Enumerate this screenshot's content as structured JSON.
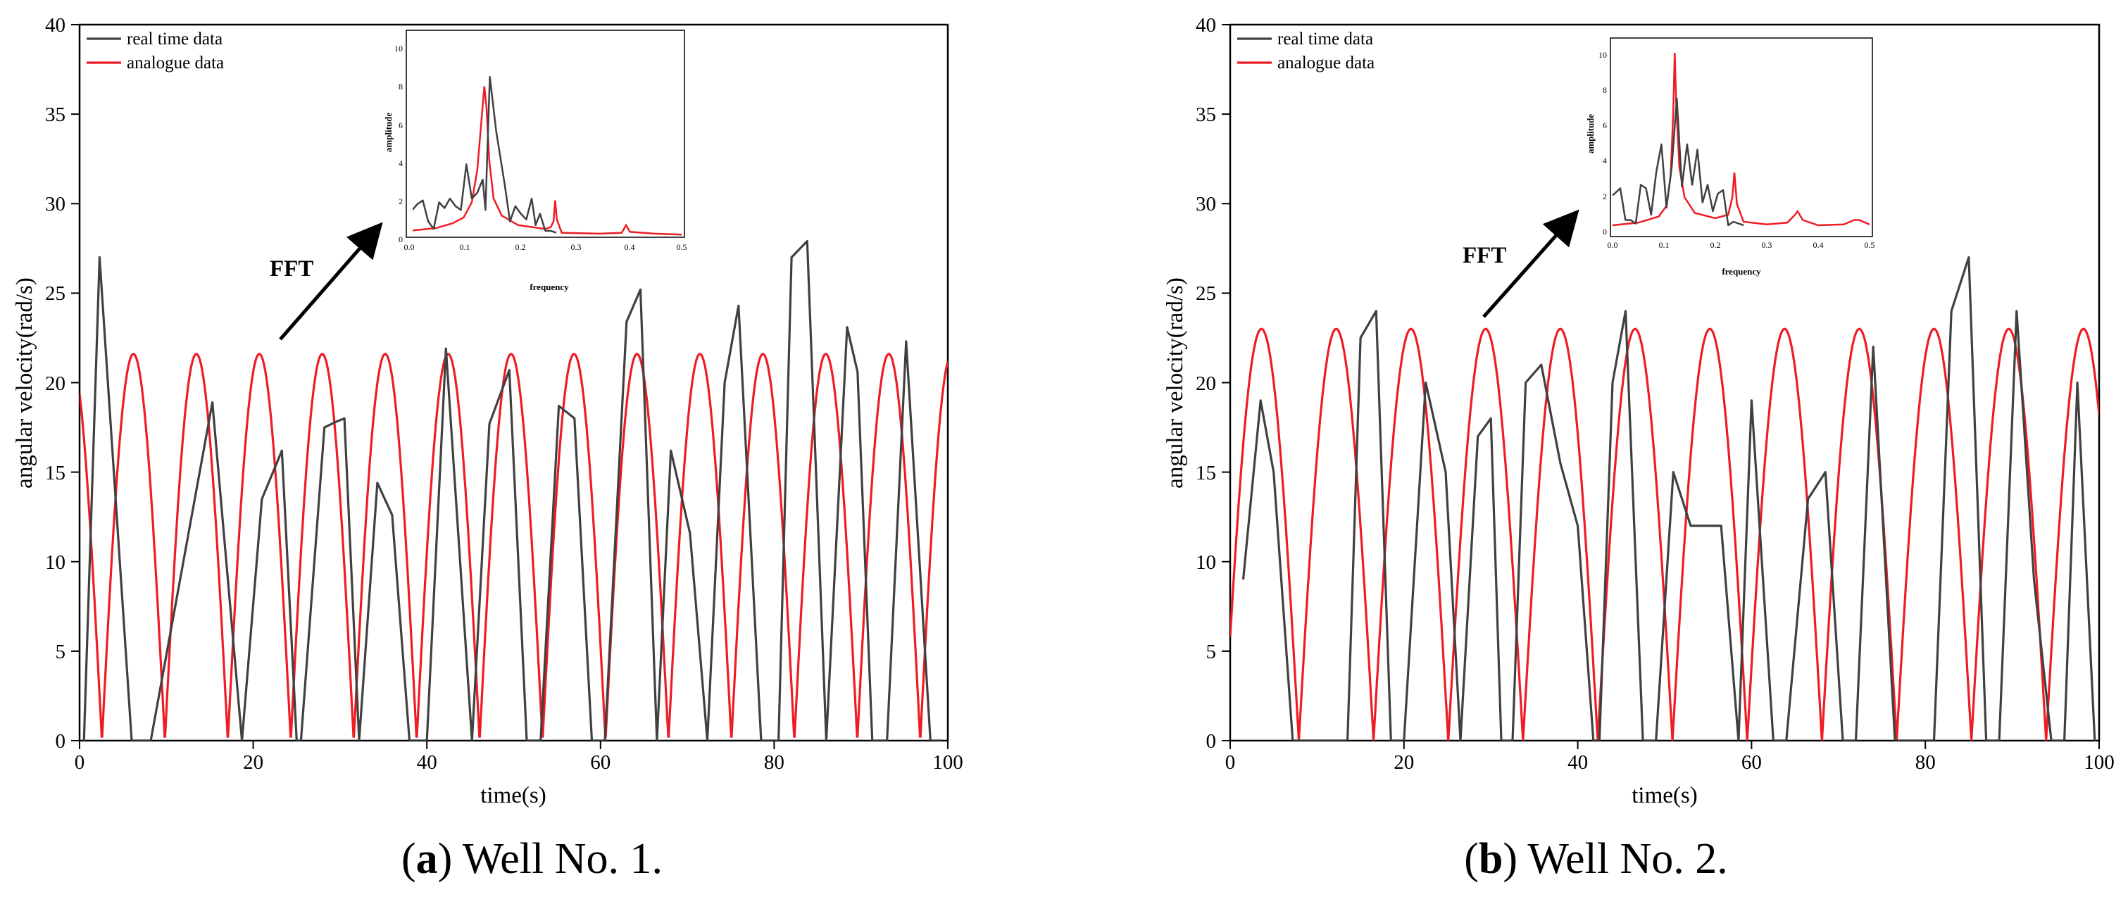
{
  "chart_data": [
    {
      "type": "line",
      "panel": "a",
      "caption_letter": "a",
      "caption_text": "Well No. 1.",
      "xlabel": "time(s)",
      "ylabel": "angular velocity(rad/s)",
      "xlim": [
        0,
        100
      ],
      "ylim": [
        0,
        40
      ],
      "xticks": [
        "0",
        "20",
        "40",
        "60",
        "80",
        "100"
      ],
      "yticks": [
        "0",
        "5",
        "10",
        "15",
        "20",
        "25",
        "30",
        "35",
        "40"
      ],
      "legend": [
        "real time data",
        "analogue data"
      ],
      "legend_position": "top-left",
      "annotation": "FFT",
      "colors": {
        "real": "#404040",
        "analogue": "#ee1c24"
      },
      "analogue_wave": {
        "amplitude": 21.6,
        "period": 7.25,
        "peak_offset": 6.2
      },
      "series": [
        {
          "name": "real time data",
          "points": [
            [
              0.5,
              0
            ],
            [
              2.3,
              27
            ],
            [
              6,
              0
            ],
            [
              6.5,
              0
            ],
            [
              8.2,
              0
            ],
            [
              15.3,
              18.9
            ],
            [
              18.7,
              0
            ],
            [
              21,
              13.5
            ],
            [
              23.3,
              16.2
            ],
            [
              25,
              0
            ],
            [
              25.5,
              0
            ],
            [
              28.2,
              17.5
            ],
            [
              29.5,
              17.8
            ],
            [
              30.5,
              18
            ],
            [
              32.2,
              0
            ],
            [
              34.3,
              14.4
            ],
            [
              36,
              12.6
            ],
            [
              38,
              0
            ],
            [
              40,
              0
            ],
            [
              42.2,
              21.9
            ],
            [
              45.2,
              0
            ],
            [
              47.2,
              17.7
            ],
            [
              49.5,
              20.7
            ],
            [
              51.5,
              0
            ],
            [
              53.1,
              0
            ],
            [
              55.2,
              18.7
            ],
            [
              57,
              18
            ],
            [
              59,
              0
            ],
            [
              60.5,
              0
            ],
            [
              63,
              23.4
            ],
            [
              64.6,
              25.2
            ],
            [
              66.5,
              0
            ],
            [
              68.1,
              16.2
            ],
            [
              70.3,
              11.6
            ],
            [
              72.3,
              0
            ],
            [
              74.3,
              20
            ],
            [
              75.9,
              24.3
            ],
            [
              78.5,
              0
            ],
            [
              80.5,
              0
            ],
            [
              82,
              27
            ],
            [
              83.8,
              27.9
            ],
            [
              86,
              0
            ],
            [
              88.4,
              23.1
            ],
            [
              89.6,
              20.6
            ],
            [
              91.3,
              0
            ],
            [
              93,
              0
            ],
            [
              95.2,
              22.3
            ],
            [
              98,
              0
            ],
            [
              99.3,
              0
            ]
          ]
        },
        {
          "name": "analogue data",
          "function": "rectified sine"
        }
      ],
      "inset": {
        "xlabel": "frequency",
        "ylabel": "amplitude",
        "xlim": [
          0,
          0.5
        ],
        "ylim": [
          0,
          10
        ],
        "xticks": [
          "0.0",
          "0.1",
          "0.2",
          "0.3",
          "0.4",
          "0.5"
        ],
        "yticks": [
          "0",
          "2",
          "4",
          "6",
          "8",
          "10"
        ],
        "series": [
          {
            "name": "real time data",
            "points": [
              [
                0,
                1.2
              ],
              [
                0.015,
                1.7
              ],
              [
                0.025,
                1.9
              ],
              [
                0.035,
                0.8
              ],
              [
                0.045,
                0.4
              ],
              [
                0.055,
                1.8
              ],
              [
                0.065,
                1.5
              ],
              [
                0.075,
                2.0
              ],
              [
                0.085,
                1.6
              ],
              [
                0.095,
                1.4
              ],
              [
                0.105,
                3.8
              ],
              [
                0.115,
                2.0
              ],
              [
                0.125,
                2.3
              ],
              [
                0.135,
                3.0
              ],
              [
                0.14,
                1.4
              ],
              [
                0.148,
                8.4
              ],
              [
                0.16,
                5.5
              ],
              [
                0.175,
                2.8
              ],
              [
                0.185,
                0.8
              ],
              [
                0.195,
                1.6
              ],
              [
                0.205,
                1.2
              ],
              [
                0.215,
                0.9
              ],
              [
                0.225,
                2.0
              ],
              [
                0.232,
                0.6
              ],
              [
                0.24,
                1.2
              ],
              [
                0.25,
                0.3
              ],
              [
                0.26,
                0.3
              ],
              [
                0.27,
                0.2
              ]
            ]
          },
          {
            "name": "analogue data",
            "points": [
              [
                0,
                0.3
              ],
              [
                0.05,
                0.45
              ],
              [
                0.08,
                0.7
              ],
              [
                0.1,
                1.0
              ],
              [
                0.115,
                1.8
              ],
              [
                0.125,
                3.5
              ],
              [
                0.133,
                6.2
              ],
              [
                0.138,
                7.9
              ],
              [
                0.142,
                6.8
              ],
              [
                0.147,
                4.0
              ],
              [
                0.155,
                2.0
              ],
              [
                0.17,
                1.1
              ],
              [
                0.2,
                0.6
              ],
              [
                0.25,
                0.4
              ],
              [
                0.26,
                0.5
              ],
              [
                0.265,
                0.8
              ],
              [
                0.268,
                1.9
              ],
              [
                0.271,
                0.9
              ],
              [
                0.28,
                0.2
              ],
              [
                0.35,
                0.15
              ],
              [
                0.39,
                0.2
              ],
              [
                0.398,
                0.6
              ],
              [
                0.405,
                0.25
              ],
              [
                0.45,
                0.15
              ],
              [
                0.5,
                0.1
              ]
            ]
          }
        ]
      }
    },
    {
      "type": "line",
      "panel": "b",
      "caption_letter": "b",
      "caption_text": "Well No. 2.",
      "xlabel": "time(s)",
      "ylabel": "angular velocity(rad/s)",
      "xlim": [
        0,
        100
      ],
      "ylim": [
        0,
        40
      ],
      "xticks": [
        "0",
        "20",
        "40",
        "60",
        "80",
        "100"
      ],
      "yticks": [
        "0",
        "5",
        "10",
        "15",
        "20",
        "25",
        "30",
        "35",
        "40"
      ],
      "legend": [
        "real time data",
        "analogue data"
      ],
      "legend_position": "top-left",
      "annotation": "FFT",
      "colors": {
        "real": "#404040",
        "analogue": "#ee1c24"
      },
      "analogue_wave": {
        "amplitude": 23,
        "period": 8.6,
        "peak_offset": 3.6
      },
      "series": [
        {
          "name": "real time data",
          "points": [
            [
              1.5,
              9
            ],
            [
              3.5,
              19
            ],
            [
              5,
              15
            ],
            [
              7.2,
              0
            ],
            [
              8,
              0
            ],
            [
              10,
              0
            ],
            [
              13.5,
              0
            ],
            [
              15,
              22.5
            ],
            [
              16.8,
              24
            ],
            [
              18.5,
              0
            ],
            [
              20,
              0
            ],
            [
              22.5,
              20
            ],
            [
              24.8,
              15
            ],
            [
              26.5,
              0
            ],
            [
              28.5,
              17
            ],
            [
              30,
              18
            ],
            [
              31.2,
              0
            ],
            [
              32.5,
              0
            ],
            [
              34,
              20
            ],
            [
              35.8,
              21
            ],
            [
              38,
              15.5
            ],
            [
              40,
              12
            ],
            [
              41.8,
              0
            ],
            [
              42.5,
              0
            ],
            [
              44,
              20
            ],
            [
              45.5,
              24
            ],
            [
              47.5,
              0
            ],
            [
              49,
              0
            ],
            [
              51,
              15
            ],
            [
              53,
              12
            ],
            [
              56.5,
              12
            ],
            [
              58.5,
              0
            ],
            [
              60,
              19
            ],
            [
              62.5,
              0
            ],
            [
              64,
              0
            ],
            [
              66.5,
              13.5
            ],
            [
              68.5,
              15
            ],
            [
              70.5,
              0
            ],
            [
              72,
              0
            ],
            [
              74,
              22
            ],
            [
              76.5,
              0
            ],
            [
              79.5,
              0
            ],
            [
              81,
              0
            ],
            [
              83,
              24
            ],
            [
              85,
              27
            ],
            [
              87,
              0
            ],
            [
              88.5,
              0
            ],
            [
              90.5,
              24
            ],
            [
              92.5,
              9
            ],
            [
              94.5,
              0
            ],
            [
              96,
              0
            ],
            [
              97.5,
              20
            ],
            [
              99.5,
              0
            ]
          ]
        },
        {
          "name": "analogue data",
          "function": "rectified sine"
        }
      ],
      "inset": {
        "xlabel": "frequency",
        "ylabel": "amplitude",
        "xlim": [
          0,
          0.5
        ],
        "ylim": [
          0,
          10
        ],
        "xticks": [
          "0.0",
          "0.1",
          "0.2",
          "0.3",
          "0.4",
          "0.5"
        ],
        "yticks": [
          "0",
          "2",
          "4",
          "6",
          "8",
          "10"
        ],
        "series": [
          {
            "name": "real time data",
            "points": [
              [
                0,
                1.9
              ],
              [
                0.015,
                2.3
              ],
              [
                0.025,
                0.5
              ],
              [
                0.035,
                0.5
              ],
              [
                0.045,
                0.3
              ],
              [
                0.055,
                2.5
              ],
              [
                0.065,
                2.3
              ],
              [
                0.075,
                0.8
              ],
              [
                0.085,
                3.2
              ],
              [
                0.095,
                4.8
              ],
              [
                0.105,
                1.2
              ],
              [
                0.115,
                3.5
              ],
              [
                0.125,
                7.4
              ],
              [
                0.135,
                2.4
              ],
              [
                0.145,
                4.8
              ],
              [
                0.155,
                2.5
              ],
              [
                0.165,
                4.5
              ],
              [
                0.175,
                1.5
              ],
              [
                0.185,
                2.5
              ],
              [
                0.195,
                1.0
              ],
              [
                0.205,
                2.0
              ],
              [
                0.215,
                2.2
              ],
              [
                0.225,
                0.2
              ],
              [
                0.235,
                0.4
              ],
              [
                0.245,
                0.3
              ],
              [
                0.255,
                0.2
              ]
            ]
          },
          {
            "name": "analogue data",
            "points": [
              [
                0,
                0.2
              ],
              [
                0.05,
                0.35
              ],
              [
                0.09,
                0.7
              ],
              [
                0.105,
                1.3
              ],
              [
                0.113,
                3.0
              ],
              [
                0.118,
                6.5
              ],
              [
                0.121,
                10
              ],
              [
                0.124,
                7.0
              ],
              [
                0.13,
                3.5
              ],
              [
                0.14,
                1.8
              ],
              [
                0.16,
                0.9
              ],
              [
                0.2,
                0.6
              ],
              [
                0.225,
                0.8
              ],
              [
                0.233,
                1.8
              ],
              [
                0.237,
                3.2
              ],
              [
                0.242,
                1.4
              ],
              [
                0.255,
                0.4
              ],
              [
                0.3,
                0.25
              ],
              [
                0.34,
                0.35
              ],
              [
                0.355,
                0.8
              ],
              [
                0.36,
                1.0
              ],
              [
                0.37,
                0.5
              ],
              [
                0.4,
                0.2
              ],
              [
                0.45,
                0.25
              ],
              [
                0.47,
                0.5
              ],
              [
                0.48,
                0.5
              ],
              [
                0.5,
                0.25
              ]
            ]
          }
        ]
      }
    }
  ]
}
